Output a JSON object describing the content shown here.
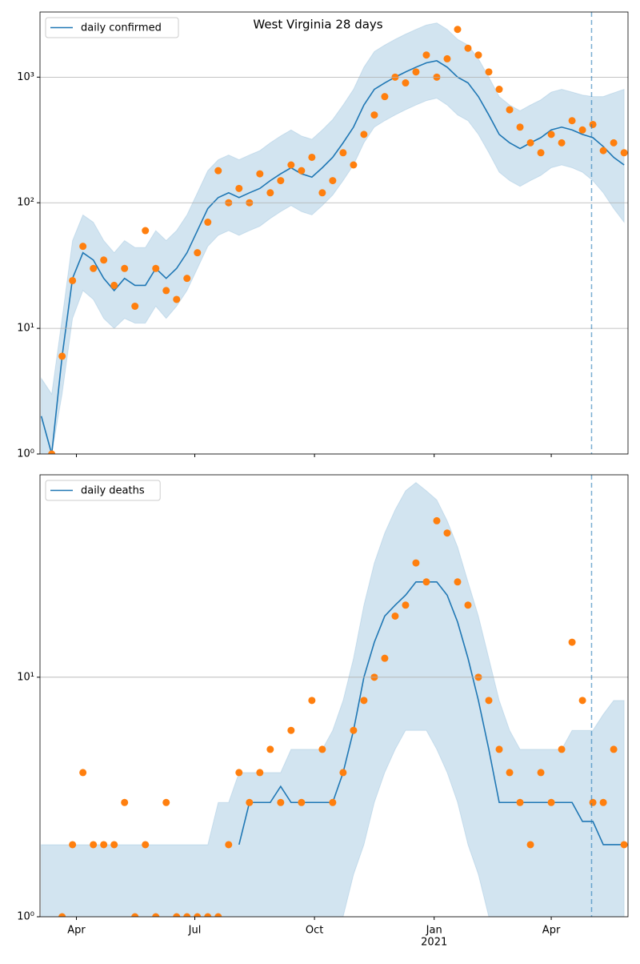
{
  "chart_data": [
    {
      "type": "line",
      "title": "West Virginia 28 days",
      "log_y": true,
      "grid": true,
      "legend": "upper left",
      "xlim": [
        3,
        455
      ],
      "ylim": [
        1,
        3300
      ],
      "yticks": [
        {
          "value": 1,
          "label": "10⁰"
        },
        {
          "value": 10,
          "label": "10¹"
        },
        {
          "value": 100,
          "label": "10²"
        },
        {
          "value": 1000,
          "label": "10³"
        }
      ],
      "vline_x": 427,
      "x": [
        4,
        12,
        20,
        28,
        36,
        44,
        52,
        60,
        68,
        76,
        84,
        92,
        100,
        108,
        116,
        124,
        132,
        140,
        148,
        156,
        164,
        172,
        180,
        188,
        196,
        204,
        212,
        220,
        228,
        236,
        244,
        252,
        260,
        268,
        276,
        284,
        292,
        300,
        308,
        316,
        324,
        332,
        340,
        348,
        356,
        364,
        372,
        380,
        388,
        396,
        404,
        412,
        420,
        428,
        436,
        444,
        452
      ],
      "series": [
        {
          "name": "daily confirmed",
          "color": "#1f77b4",
          "values": [
            2,
            1,
            6,
            25,
            40,
            35,
            25,
            20,
            25,
            22,
            22,
            30,
            25,
            30,
            40,
            60,
            90,
            110,
            120,
            110,
            120,
            130,
            150,
            170,
            190,
            170,
            160,
            190,
            230,
            300,
            400,
            600,
            800,
            900,
            1000,
            1100,
            1200,
            1300,
            1350,
            1200,
            1000,
            900,
            700,
            500,
            350,
            300,
            270,
            300,
            330,
            380,
            400,
            380,
            350,
            330,
            280,
            230,
            200
          ]
        }
      ],
      "points": {
        "color": "#ff7f0e",
        "values": [
          null,
          1,
          6,
          24,
          45,
          30,
          35,
          22,
          30,
          15,
          60,
          30,
          20,
          17,
          25,
          40,
          70,
          180,
          100,
          130,
          100,
          170,
          120,
          150,
          200,
          180,
          230,
          120,
          150,
          250,
          200,
          350,
          500,
          700,
          1000,
          900,
          1100,
          1500,
          1000,
          1400,
          2400,
          1700,
          1500,
          1100,
          800,
          550,
          400,
          300,
          250,
          350,
          300,
          450,
          380,
          420,
          260,
          300,
          250
        ]
      },
      "band": {
        "color": "#1f77b4",
        "lower": [
          1,
          1,
          3,
          12,
          20,
          17,
          12,
          10,
          12,
          11,
          11,
          15,
          12,
          15,
          20,
          30,
          45,
          55,
          60,
          55,
          60,
          65,
          75,
          85,
          95,
          85,
          80,
          95,
          115,
          150,
          200,
          300,
          400,
          450,
          500,
          550,
          600,
          650,
          680,
          600,
          500,
          450,
          350,
          250,
          175,
          150,
          135,
          150,
          165,
          190,
          200,
          190,
          175,
          150,
          120,
          90,
          70
        ],
        "upper": [
          4,
          3,
          12,
          50,
          80,
          70,
          50,
          40,
          50,
          44,
          44,
          60,
          50,
          60,
          80,
          120,
          180,
          220,
          240,
          220,
          240,
          260,
          300,
          340,
          380,
          340,
          320,
          380,
          460,
          600,
          800,
          1200,
          1600,
          1800,
          2000,
          2200,
          2400,
          2600,
          2700,
          2400,
          2000,
          1800,
          1400,
          1000,
          700,
          600,
          540,
          600,
          660,
          760,
          800,
          760,
          720,
          700,
          700,
          750,
          800
        ]
      }
    },
    {
      "type": "line",
      "log_y": true,
      "grid": true,
      "legend": "upper left",
      "xlim": [
        3,
        455
      ],
      "ylim": [
        1,
        70
      ],
      "yticks": [
        {
          "value": 1,
          "label": "10⁰"
        },
        {
          "value": 10,
          "label": "10¹"
        }
      ],
      "xticks": [
        {
          "value": 31,
          "label": "Apr"
        },
        {
          "value": 122,
          "label": "Jul"
        },
        {
          "value": 214,
          "label": "Oct"
        },
        {
          "value": 306,
          "label": "Jan",
          "sublabel": "2021"
        },
        {
          "value": 396,
          "label": "Apr"
        }
      ],
      "vline_x": 427,
      "x": [
        4,
        12,
        20,
        28,
        36,
        44,
        52,
        60,
        68,
        76,
        84,
        92,
        100,
        108,
        116,
        124,
        132,
        140,
        148,
        156,
        164,
        172,
        180,
        188,
        196,
        204,
        212,
        220,
        228,
        236,
        244,
        252,
        260,
        268,
        276,
        284,
        292,
        300,
        308,
        316,
        324,
        332,
        340,
        348,
        356,
        364,
        372,
        380,
        388,
        396,
        404,
        412,
        420,
        428,
        436,
        444,
        452
      ],
      "series": [
        {
          "name": "daily deaths",
          "color": "#1f77b4",
          "values": [
            null,
            null,
            null,
            null,
            null,
            null,
            null,
            null,
            null,
            null,
            null,
            null,
            null,
            null,
            null,
            null,
            null,
            null,
            null,
            2,
            3,
            3,
            3,
            3.5,
            3,
            3,
            3,
            3,
            3,
            4,
            6,
            10,
            14,
            18,
            20,
            22,
            25,
            25,
            25,
            22,
            17,
            12,
            8,
            5,
            3,
            3,
            3,
            3,
            3,
            3,
            3,
            3,
            2.5,
            2.5,
            2,
            2,
            2
          ]
        }
      ],
      "points": {
        "color": "#ff7f0e",
        "values": [
          null,
          null,
          1,
          2,
          4,
          2,
          2,
          2,
          3,
          1,
          2,
          1,
          3,
          1,
          1,
          1,
          1,
          1,
          2,
          4,
          3,
          4,
          5,
          3,
          6,
          3,
          8,
          5,
          3,
          4,
          6,
          8,
          10,
          12,
          18,
          20,
          30,
          25,
          45,
          40,
          25,
          20,
          10,
          8,
          5,
          4,
          3,
          2,
          4,
          3,
          5,
          14,
          8,
          3,
          3,
          5,
          2
        ]
      },
      "band": {
        "color": "#1f77b4",
        "lower": [
          1,
          1,
          1,
          1,
          1,
          1,
          1,
          1,
          1,
          1,
          1,
          1,
          1,
          1,
          1,
          1,
          1,
          1,
          1,
          1,
          1,
          1,
          1,
          1,
          1,
          1,
          1,
          1,
          1,
          1,
          1.5,
          2,
          3,
          4,
          5,
          6,
          6,
          6,
          5,
          4,
          3,
          2,
          1.5,
          1,
          1,
          1,
          1,
          1,
          1,
          1,
          1,
          1,
          1,
          1,
          1,
          1,
          1
        ],
        "upper": [
          2,
          2,
          2,
          2,
          2,
          2,
          2,
          2,
          2,
          2,
          2,
          2,
          2,
          2,
          2,
          2,
          2,
          3,
          3,
          4,
          4,
          4,
          4,
          4,
          5,
          5,
          5,
          5,
          6,
          8,
          12,
          20,
          30,
          40,
          50,
          60,
          65,
          60,
          55,
          45,
          35,
          25,
          18,
          12,
          8,
          6,
          5,
          5,
          5,
          5,
          5,
          6,
          6,
          6,
          7,
          8,
          8
        ]
      }
    }
  ]
}
